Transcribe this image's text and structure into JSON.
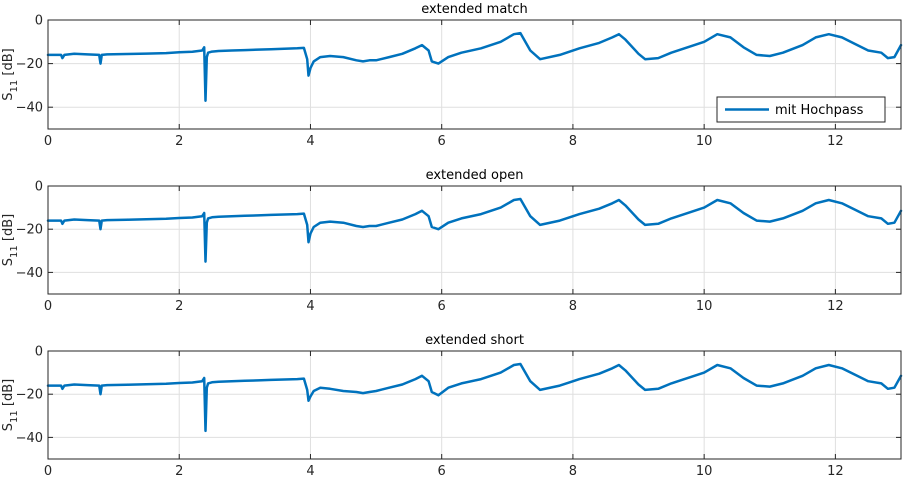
{
  "colors": {
    "line": "#0072BD",
    "axis": "#262626",
    "grid": "#dfdfdf"
  },
  "legend": {
    "label": "mit Hochpass",
    "location": "bottom-right",
    "panel": 0
  },
  "chart_data": [
    {
      "type": "line",
      "title": "extended match",
      "xlabel": "",
      "ylabel_main": "S",
      "ylabel_sub": "11",
      "ylabel_unit": " [dB]",
      "xlim": [
        0,
        13
      ],
      "ylim": [
        -50,
        0
      ],
      "xticks": [
        0,
        2,
        4,
        6,
        8,
        10,
        12
      ],
      "yticks": [
        0,
        -20,
        -40
      ],
      "grid": true,
      "series": [
        {
          "name": "mit Hochpass",
          "x": [
            0,
            0.2,
            0.22,
            0.25,
            0.4,
            0.6,
            0.78,
            0.8,
            0.82,
            0.9,
            1.2,
            1.5,
            1.8,
            2.0,
            2.2,
            2.35,
            2.38,
            2.4,
            2.42,
            2.44,
            2.5,
            2.6,
            2.8,
            3.0,
            3.2,
            3.4,
            3.6,
            3.8,
            3.9,
            3.95,
            3.97,
            4.0,
            4.05,
            4.15,
            4.3,
            4.5,
            4.7,
            4.8,
            4.9,
            5.0,
            5.2,
            5.4,
            5.6,
            5.7,
            5.8,
            5.85,
            5.95,
            6.1,
            6.3,
            6.6,
            6.9,
            7.1,
            7.2,
            7.35,
            7.5,
            7.8,
            8.1,
            8.4,
            8.6,
            8.7,
            8.8,
            9.0,
            9.1,
            9.3,
            9.5,
            9.8,
            10.0,
            10.2,
            10.4,
            10.6,
            10.8,
            11.0,
            11.2,
            11.5,
            11.7,
            11.9,
            12.1,
            12.3,
            12.5,
            12.7,
            12.8,
            12.9,
            13.0
          ],
          "y": [
            -16,
            -16,
            -17.5,
            -16,
            -15.5,
            -15.8,
            -16,
            -20,
            -16,
            -15.8,
            -15.6,
            -15.4,
            -15.2,
            -14.8,
            -14.6,
            -14,
            -12.5,
            -37,
            -17,
            -15,
            -14.5,
            -14.2,
            -14,
            -13.8,
            -13.6,
            -13.4,
            -13.2,
            -13,
            -12.8,
            -18,
            -25.5,
            -22,
            -19,
            -17,
            -16.5,
            -17,
            -18.5,
            -19,
            -18.5,
            -18.5,
            -17,
            -15.5,
            -13,
            -11.5,
            -14,
            -19,
            -20,
            -17,
            -15,
            -13,
            -10,
            -6.5,
            -6,
            -14,
            -18,
            -16,
            -13,
            -10.5,
            -8,
            -6.5,
            -9,
            -15.5,
            -18,
            -17.5,
            -15,
            -12,
            -10,
            -6.5,
            -8,
            -12.5,
            -16,
            -16.5,
            -15,
            -11.5,
            -8,
            -6.5,
            -8,
            -11,
            -14,
            -15,
            -17.5,
            -17,
            -11.5
          ]
        }
      ]
    },
    {
      "type": "line",
      "title": "extended open",
      "xlabel": "",
      "ylabel_main": "S",
      "ylabel_sub": "11",
      "ylabel_unit": " [dB]",
      "xlim": [
        0,
        13
      ],
      "ylim": [
        -50,
        0
      ],
      "xticks": [
        0,
        2,
        4,
        6,
        8,
        10,
        12
      ],
      "yticks": [
        0,
        -20,
        -40
      ],
      "grid": true,
      "series": [
        {
          "name": "mit Hochpass",
          "x": [
            0,
            0.2,
            0.22,
            0.25,
            0.4,
            0.6,
            0.78,
            0.8,
            0.82,
            0.9,
            1.2,
            1.5,
            1.8,
            2.0,
            2.2,
            2.35,
            2.38,
            2.4,
            2.42,
            2.44,
            2.5,
            2.6,
            2.8,
            3.0,
            3.2,
            3.4,
            3.6,
            3.8,
            3.9,
            3.95,
            3.97,
            4.0,
            4.05,
            4.15,
            4.3,
            4.5,
            4.7,
            4.8,
            4.9,
            5.0,
            5.2,
            5.4,
            5.6,
            5.7,
            5.8,
            5.85,
            5.95,
            6.1,
            6.3,
            6.6,
            6.9,
            7.1,
            7.2,
            7.35,
            7.5,
            7.8,
            8.1,
            8.4,
            8.6,
            8.7,
            8.8,
            9.0,
            9.1,
            9.3,
            9.5,
            9.8,
            10.0,
            10.2,
            10.4,
            10.6,
            10.8,
            11.0,
            11.2,
            11.5,
            11.7,
            11.9,
            12.1,
            12.3,
            12.5,
            12.7,
            12.8,
            12.9,
            13.0
          ],
          "y": [
            -16,
            -16,
            -17.5,
            -16,
            -15.5,
            -15.8,
            -16,
            -20,
            -16,
            -15.8,
            -15.6,
            -15.4,
            -15.2,
            -14.8,
            -14.6,
            -14,
            -12.5,
            -35,
            -17,
            -15,
            -14.5,
            -14.2,
            -14,
            -13.8,
            -13.6,
            -13.4,
            -13.2,
            -13,
            -12.8,
            -18,
            -26,
            -22,
            -19,
            -17,
            -16.5,
            -17,
            -18.5,
            -19,
            -18.5,
            -18.5,
            -17,
            -15.5,
            -13,
            -11.5,
            -14,
            -19,
            -20,
            -17,
            -15,
            -13,
            -10,
            -6.5,
            -6,
            -14,
            -18,
            -16,
            -13,
            -10.5,
            -8,
            -6.5,
            -9,
            -15.5,
            -18,
            -17.5,
            -15,
            -12,
            -10,
            -6.5,
            -8,
            -12.5,
            -16,
            -16.5,
            -15,
            -11.5,
            -8,
            -6.5,
            -8,
            -11,
            -14,
            -15,
            -17.5,
            -17,
            -11.5
          ]
        }
      ]
    },
    {
      "type": "line",
      "title": "extended short",
      "xlabel": "",
      "ylabel_main": "S",
      "ylabel_sub": "11",
      "ylabel_unit": " [dB]",
      "xlim": [
        0,
        13
      ],
      "ylim": [
        -50,
        0
      ],
      "xticks": [
        0,
        2,
        4,
        6,
        8,
        10,
        12
      ],
      "yticks": [
        0,
        -20,
        -40
      ],
      "grid": true,
      "series": [
        {
          "name": "mit Hochpass",
          "x": [
            0,
            0.2,
            0.22,
            0.25,
            0.4,
            0.6,
            0.78,
            0.8,
            0.82,
            0.9,
            1.2,
            1.5,
            1.8,
            2.0,
            2.2,
            2.35,
            2.38,
            2.4,
            2.42,
            2.44,
            2.5,
            2.6,
            2.8,
            3.0,
            3.2,
            3.4,
            3.6,
            3.8,
            3.9,
            3.95,
            3.97,
            4.0,
            4.05,
            4.15,
            4.3,
            4.5,
            4.7,
            4.8,
            4.9,
            5.0,
            5.2,
            5.4,
            5.6,
            5.7,
            5.8,
            5.85,
            5.95,
            6.1,
            6.3,
            6.6,
            6.9,
            7.1,
            7.2,
            7.35,
            7.5,
            7.8,
            8.1,
            8.4,
            8.6,
            8.7,
            8.8,
            9.0,
            9.1,
            9.3,
            9.5,
            9.8,
            10.0,
            10.2,
            10.4,
            10.6,
            10.8,
            11.0,
            11.2,
            11.5,
            11.7,
            11.9,
            12.1,
            12.3,
            12.5,
            12.7,
            12.8,
            12.9,
            13.0
          ],
          "y": [
            -16,
            -16,
            -17.5,
            -16,
            -15.5,
            -15.8,
            -16,
            -20,
            -16,
            -15.8,
            -15.6,
            -15.4,
            -15.2,
            -14.8,
            -14.6,
            -14,
            -12.5,
            -37,
            -17,
            -15,
            -14.5,
            -14.2,
            -14,
            -13.8,
            -13.6,
            -13.4,
            -13.2,
            -13,
            -12.8,
            -18,
            -23,
            -21,
            -18.5,
            -17,
            -17.5,
            -18.5,
            -19,
            -19.5,
            -19,
            -18.5,
            -17,
            -15.5,
            -13,
            -11.5,
            -14,
            -19,
            -20.5,
            -17,
            -15,
            -13,
            -10,
            -6.5,
            -6,
            -14,
            -18,
            -16,
            -13,
            -10.5,
            -8,
            -6.5,
            -9,
            -15.5,
            -18,
            -17.5,
            -15,
            -12,
            -10,
            -6.5,
            -8,
            -12.5,
            -16,
            -16.5,
            -15,
            -11.5,
            -8,
            -6.5,
            -8,
            -11,
            -14,
            -15,
            -17.5,
            -17,
            -11.5
          ]
        }
      ]
    }
  ]
}
